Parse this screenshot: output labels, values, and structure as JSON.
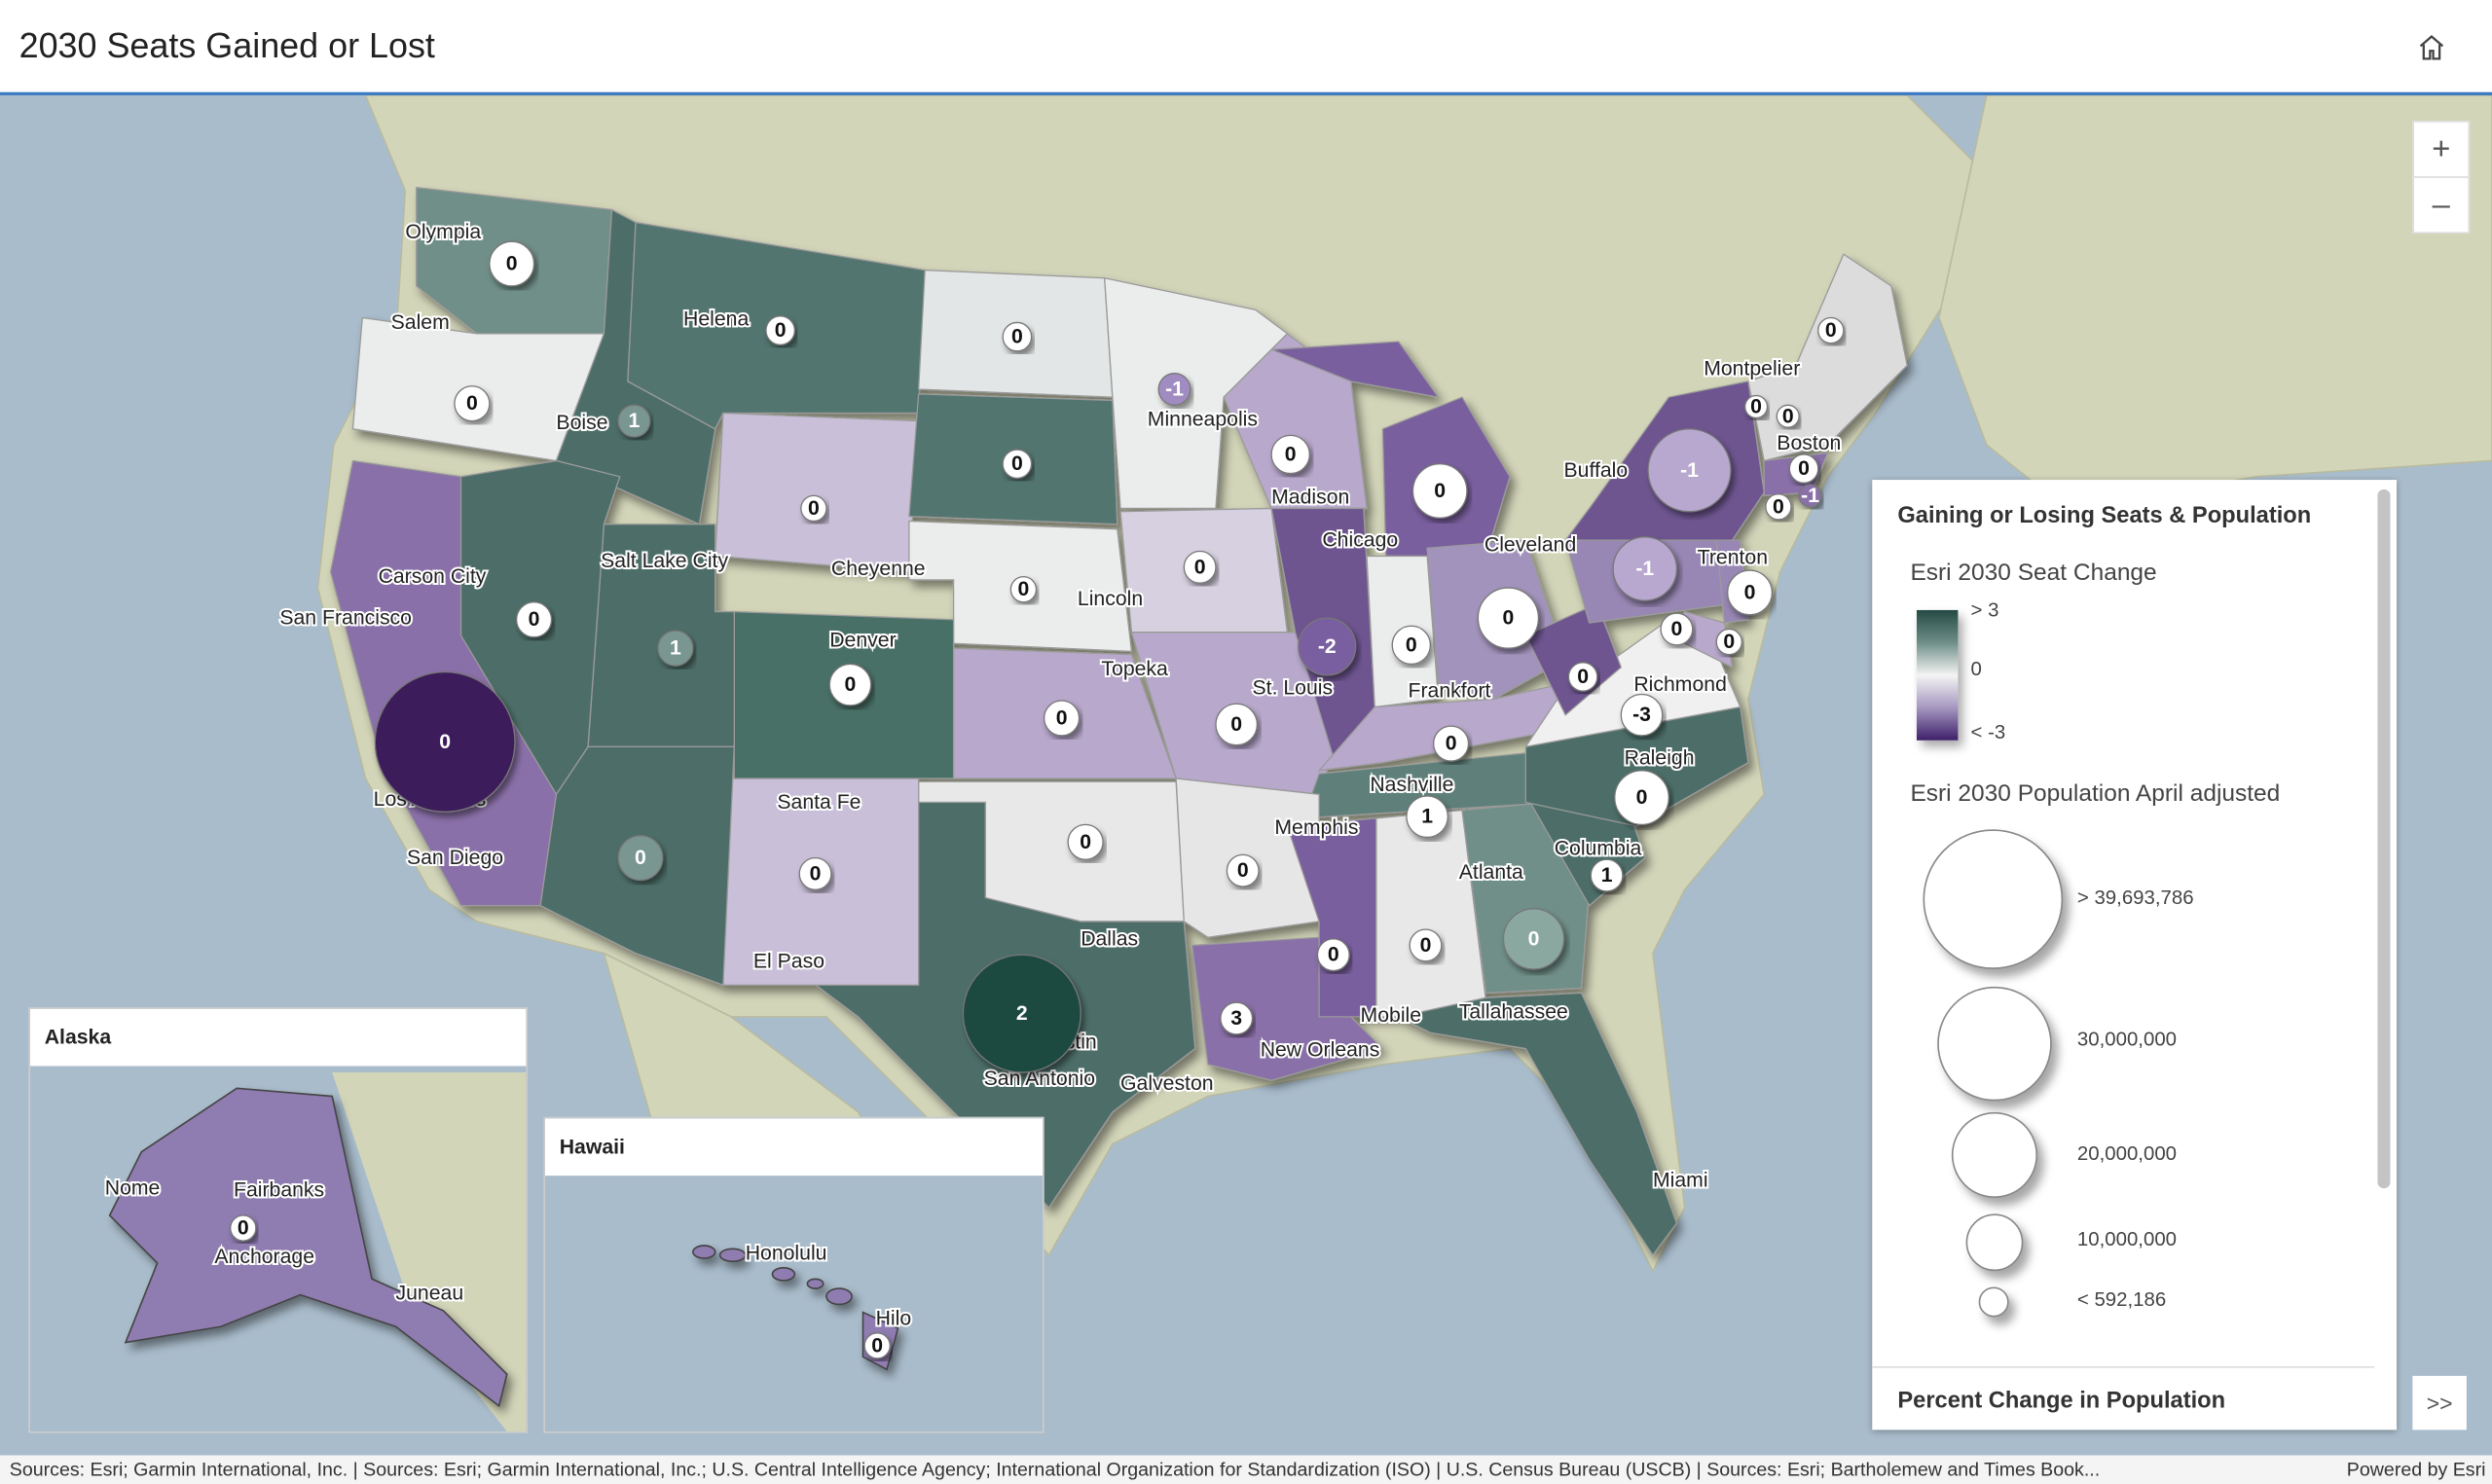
{
  "header": {
    "title": "2030 Seats Gained or Lost",
    "home_icon": "home-icon"
  },
  "controls": {
    "zoom_in": "+",
    "zoom_out": "–",
    "expand": ">>"
  },
  "colors": {
    "gain_dark": "#1f4a40",
    "gain": "#4e6e68",
    "neutral": "#ececec",
    "loss": "#8a70a8",
    "loss_dark": "#3d1a5c",
    "water": "#a9bccb",
    "land": "#d3d5b9"
  },
  "map": {
    "cities": [
      "Olympia",
      "Salem",
      "Helena",
      "Boise",
      "Minneapolis",
      "Carson City",
      "Salt Lake City",
      "Cheyenne",
      "San Francisco",
      "Lincoln",
      "Denver",
      "Madison",
      "Chicago",
      "Cleveland",
      "Buffalo",
      "Montpelier",
      "Boston",
      "Trenton",
      "Topeka",
      "St. Louis",
      "Frankfort",
      "Richmond",
      "Raleigh",
      "Nashville",
      "Memphis",
      "Columbia",
      "Atlanta",
      "Los Angeles",
      "San Diego",
      "Santa Fe",
      "El Paso",
      "Dallas",
      "Mobile",
      "Tallahassee",
      "Austin",
      "San Antonio",
      "Galveston",
      "New Orleans",
      "Miami"
    ],
    "seat_changes": [
      "0",
      "0",
      "0",
      "-1",
      "1",
      "0",
      "0",
      "0",
      "0",
      "0",
      "-1",
      "0",
      "0",
      "0",
      "0",
      "-1",
      "0",
      "0",
      "1",
      "0",
      "0",
      "-2",
      "0",
      "0",
      "-1",
      "0",
      "0",
      "0",
      "0",
      "0",
      "0",
      "0",
      "0",
      "-3",
      "0",
      "0",
      "1",
      "0",
      "0",
      "0",
      "0",
      "1",
      "0",
      "0",
      "0",
      "3",
      "2"
    ]
  },
  "insets": {
    "alaska": {
      "title": "Alaska",
      "cities": [
        "Nome",
        "Fairbanks",
        "Anchorage",
        "Juneau"
      ],
      "seat_change": "0"
    },
    "hawaii": {
      "title": "Hawaii",
      "cities": [
        "Honolulu",
        "Hilo"
      ],
      "seat_change": "0"
    }
  },
  "legend": {
    "title": "Gaining or Losing Seats & Population",
    "seat_change": {
      "title": "Esri 2030 Seat Change",
      "labels": [
        "> 3",
        "0",
        "< -3"
      ]
    },
    "population": {
      "title": "Esri 2030 Population April adjusted",
      "labels": [
        "> 39,693,786",
        "30,000,000",
        "20,000,000",
        "10,000,000",
        "< 592,186"
      ]
    },
    "next_layer": "Percent Change in Population"
  },
  "attribution": {
    "sources": "Sources: Esri; Garmin International, Inc. | Sources: Esri; Garmin International, Inc.; U.S. Central Intelligence Agency; International Organization for Standardization (ISO) | U.S. Census Bureau (USCB) | Sources: Esri; Bartholemew and Times Book...",
    "powered": "Powered by Esri"
  }
}
